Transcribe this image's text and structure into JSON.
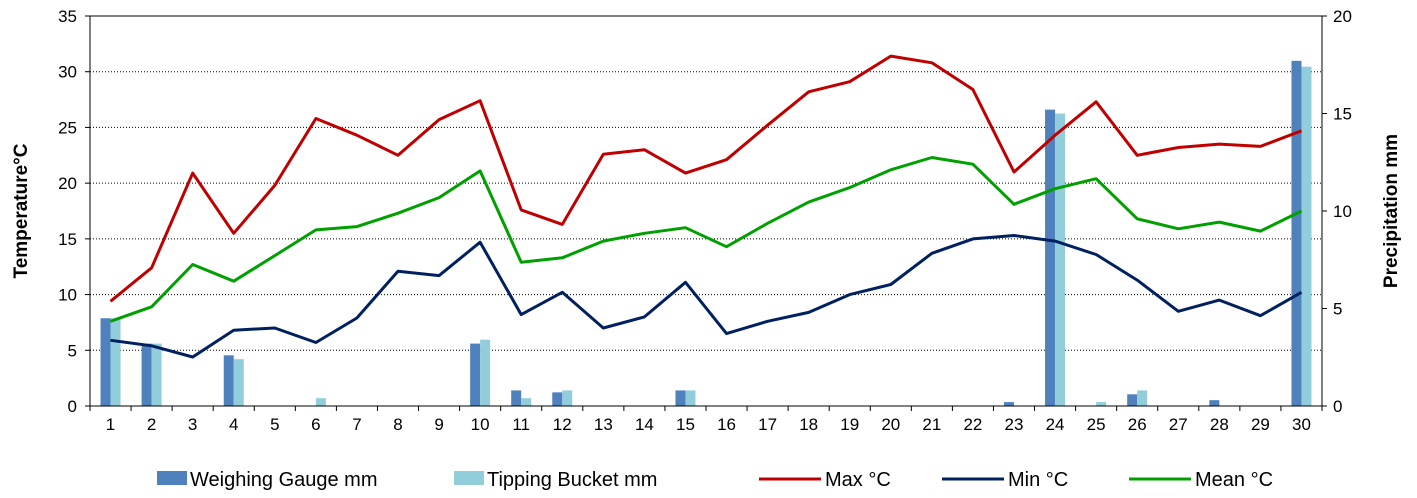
{
  "chart_data": {
    "type": "bar+line",
    "x": [
      "1",
      "2",
      "3",
      "4",
      "5",
      "6",
      "7",
      "8",
      "9",
      "10",
      "11",
      "12",
      "13",
      "14",
      "15",
      "16",
      "17",
      "18",
      "19",
      "20",
      "21",
      "22",
      "23",
      "24",
      "25",
      "26",
      "27",
      "28",
      "29",
      "30"
    ],
    "ylabel_left": "Temperature°C",
    "ylabel_right": "Precipitation mm",
    "ylim_left": [
      0,
      35
    ],
    "ylim_right": [
      0,
      20
    ],
    "yticks_left": [
      "0",
      "5",
      "10",
      "15",
      "20",
      "25",
      "30",
      "35"
    ],
    "yticks_right": [
      "0",
      "5",
      "10",
      "15",
      "20"
    ],
    "grid": "horizontal dotted",
    "legend_position": "bottom",
    "bar_series": [
      {
        "name": "Weighing Gauge mm",
        "color": "#4f81bd",
        "axis": "right",
        "values": [
          4.5,
          3.2,
          0,
          2.6,
          0,
          0,
          0,
          0,
          0,
          3.2,
          0.8,
          0.7,
          0,
          0,
          0.8,
          0,
          0,
          0,
          0,
          0,
          0,
          0,
          0.2,
          15.2,
          0,
          0.6,
          0,
          0.3,
          0,
          17.7
        ]
      },
      {
        "name": "Tipping Bucket mm",
        "color": "#92cddc",
        "axis": "right",
        "values": [
          4.5,
          3.2,
          0,
          2.4,
          0,
          0.4,
          0,
          0,
          0,
          3.4,
          0.4,
          0.8,
          0,
          0,
          0.8,
          0,
          0,
          0,
          0,
          0,
          0,
          0,
          0,
          15.0,
          0.2,
          0.8,
          0,
          0,
          0,
          17.4
        ]
      }
    ],
    "line_series": [
      {
        "name": "Max °C",
        "color": "#c00000",
        "axis": "left",
        "values": [
          9.4,
          12.4,
          20.9,
          15.5,
          19.8,
          25.8,
          24.3,
          22.5,
          25.7,
          27.4,
          17.6,
          16.3,
          22.6,
          23.0,
          20.9,
          22.1,
          25.2,
          28.2,
          29.1,
          31.4,
          30.8,
          28.4,
          21.0,
          24.3,
          27.3,
          22.5,
          23.2,
          23.5,
          23.3,
          24.7
        ]
      },
      {
        "name": "Min °C",
        "color": "#002060",
        "axis": "left",
        "values": [
          5.9,
          5.4,
          4.4,
          6.8,
          7.0,
          5.7,
          7.9,
          12.1,
          11.7,
          14.7,
          8.2,
          10.2,
          7.0,
          8.0,
          11.1,
          6.5,
          7.6,
          8.4,
          10.0,
          10.9,
          13.7,
          15.0,
          15.3,
          14.8,
          13.6,
          11.3,
          8.5,
          9.5,
          8.1,
          10.2
        ]
      },
      {
        "name": "Mean °C",
        "color": "#00a000",
        "axis": "left",
        "values": [
          7.6,
          8.9,
          12.7,
          11.2,
          13.5,
          15.8,
          16.1,
          17.3,
          18.7,
          21.1,
          12.9,
          13.3,
          14.8,
          15.5,
          16.0,
          14.3,
          16.4,
          18.3,
          19.6,
          21.2,
          22.3,
          21.7,
          18.1,
          19.5,
          20.4,
          16.8,
          15.9,
          16.5,
          15.7,
          17.5
        ]
      }
    ]
  }
}
